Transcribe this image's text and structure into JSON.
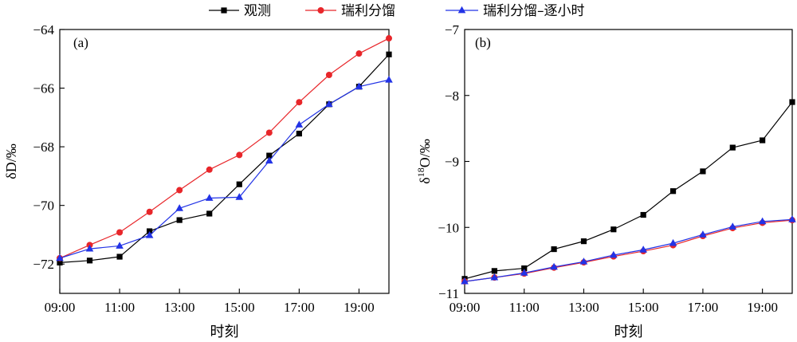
{
  "legend": [
    {
      "label": "观测",
      "color": "#000000",
      "marker": "square"
    },
    {
      "label": "瑞利分馏",
      "color": "#e8262a",
      "marker": "circle"
    },
    {
      "label": "瑞利分馏–逐小时",
      "color": "#2233e6",
      "marker": "triangle"
    }
  ],
  "chart_data": [
    {
      "type": "line",
      "panel": "(a)",
      "xlabel": "时刻",
      "ylabel": "δD/‰",
      "x": [
        9,
        10,
        11,
        12,
        13,
        14,
        15,
        16,
        17,
        18,
        19,
        20
      ],
      "xlim": [
        9,
        20
      ],
      "ylim": [
        -73,
        -64
      ],
      "xticks": [
        9,
        11,
        13,
        15,
        17,
        19
      ],
      "xtick_labels": [
        "09:00",
        "11:00",
        "13:00",
        "15:00",
        "17:00",
        "19:00"
      ],
      "yticks": [
        -72,
        -70,
        -68,
        -66,
        -64
      ],
      "ytick_labels": [
        "−72",
        "−70",
        "−68",
        "−66",
        "−64"
      ],
      "grid": false,
      "series": [
        {
          "name": "观测",
          "values": [
            -71.95,
            -71.88,
            -71.75,
            -70.88,
            -70.5,
            -70.28,
            -69.28,
            -68.3,
            -67.55,
            -66.55,
            -65.95,
            -64.85
          ]
        },
        {
          "name": "瑞利分馏",
          "values": [
            -71.8,
            -71.35,
            -70.92,
            -70.22,
            -69.48,
            -68.78,
            -68.28,
            -67.52,
            -66.48,
            -65.55,
            -64.82,
            -64.3
          ]
        },
        {
          "name": "瑞利分馏–逐小时",
          "values": [
            -71.8,
            -71.48,
            -71.38,
            -71.02,
            -70.1,
            -69.75,
            -69.72,
            -68.48,
            -67.25,
            -66.55,
            -65.95,
            -65.72
          ]
        }
      ]
    },
    {
      "type": "line",
      "panel": "(b)",
      "xlabel": "时刻",
      "ylabel": "δ18O/‰",
      "x": [
        9,
        10,
        11,
        12,
        13,
        14,
        15,
        16,
        17,
        18,
        19,
        20
      ],
      "xlim": [
        9,
        20
      ],
      "ylim": [
        -11,
        -7
      ],
      "xticks": [
        9,
        11,
        13,
        15,
        17,
        19
      ],
      "xtick_labels": [
        "09:00",
        "11:00",
        "13:00",
        "15:00",
        "17:00",
        "19:00"
      ],
      "yticks": [
        -11,
        -10,
        -9,
        -8,
        -7
      ],
      "ytick_labels": [
        "−11",
        "−10",
        "−9",
        "−8",
        "−7"
      ],
      "grid": false,
      "series": [
        {
          "name": "观测",
          "values": [
            -10.78,
            -10.66,
            -10.62,
            -10.33,
            -10.21,
            -10.03,
            -9.81,
            -9.45,
            -9.15,
            -8.79,
            -8.68,
            -8.1
          ]
        },
        {
          "name": "瑞利分馏",
          "values": [
            -10.82,
            -10.76,
            -10.7,
            -10.61,
            -10.53,
            -10.44,
            -10.36,
            -10.27,
            -10.13,
            -10.01,
            -9.93,
            -9.89
          ]
        },
        {
          "name": "瑞利分馏–逐小时",
          "values": [
            -10.82,
            -10.76,
            -10.69,
            -10.6,
            -10.52,
            -10.42,
            -10.34,
            -10.24,
            -10.11,
            -9.99,
            -9.91,
            -9.88
          ]
        }
      ]
    }
  ]
}
